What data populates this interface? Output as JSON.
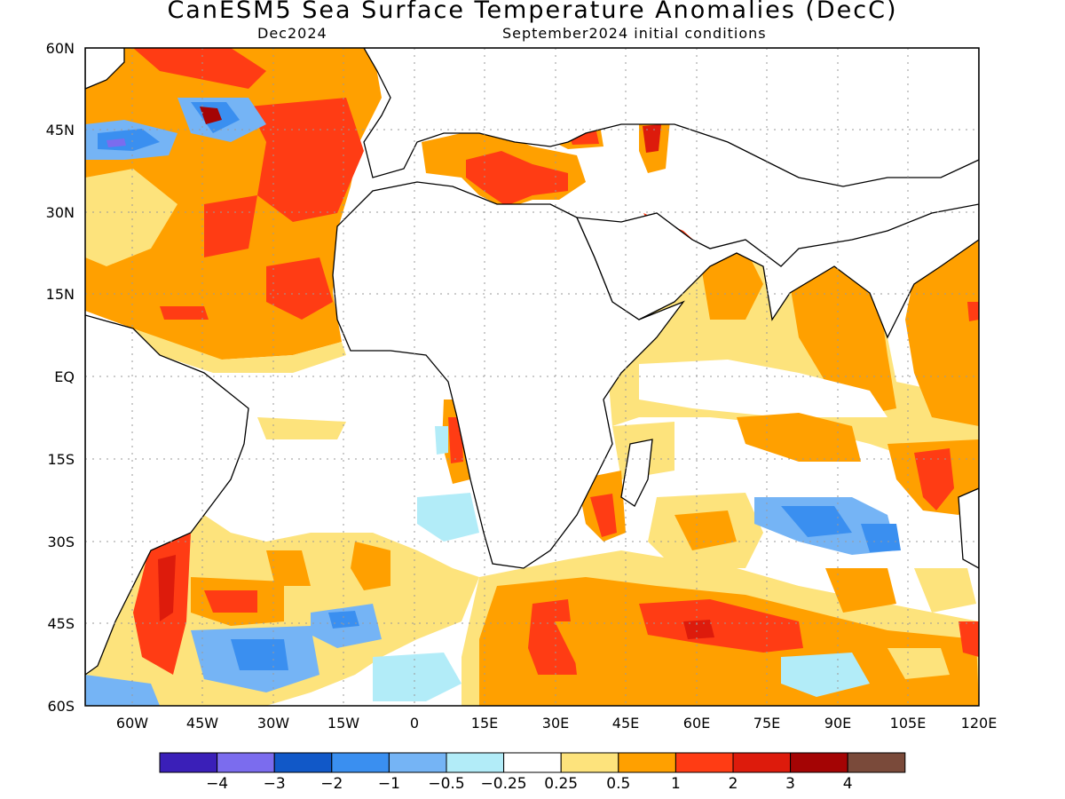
{
  "title": "CanESM5 Sea Surface Temperature Anomalies (DecC)",
  "subtitle_left": "Dec2024",
  "subtitle_right": "September2024 initial conditions",
  "chart_data": {
    "type": "heatmap",
    "variable": "Sea Surface Temperature Anomalies",
    "units": "DecC",
    "lon_range": [
      -70,
      120
    ],
    "lat_range": [
      -60,
      60
    ],
    "lat_ticks": [
      "60N",
      "45N",
      "30N",
      "15N",
      "EQ",
      "15S",
      "30S",
      "45S",
      "60S"
    ],
    "lon_ticks": [
      "60W",
      "45W",
      "30W",
      "15W",
      "0",
      "15E",
      "30E",
      "45E",
      "60E",
      "75E",
      "90E",
      "105E",
      "120E"
    ],
    "lat_tick_values": [
      60,
      45,
      30,
      15,
      0,
      -15,
      -30,
      -45,
      -60
    ],
    "lon_tick_values": [
      -60,
      -45,
      -30,
      -15,
      0,
      15,
      30,
      45,
      60,
      75,
      90,
      105,
      120
    ],
    "grid": true,
    "colorbar": {
      "levels": [
        "−4",
        "−3",
        "−2",
        "−1",
        "−0.5",
        "−0.25",
        "0.25",
        "0.5",
        "1",
        "2",
        "3",
        "4"
      ],
      "colors": [
        "#3a1fb8",
        "#7b6cee",
        "#1158c8",
        "#3a8ff0",
        "#75b4f5",
        "#b2ecf8",
        "#ffffff",
        "#fde37c",
        "#ffa000",
        "#ff3c14",
        "#dd1b0c",
        "#a40404",
        "#7a4a3a"
      ]
    }
  }
}
